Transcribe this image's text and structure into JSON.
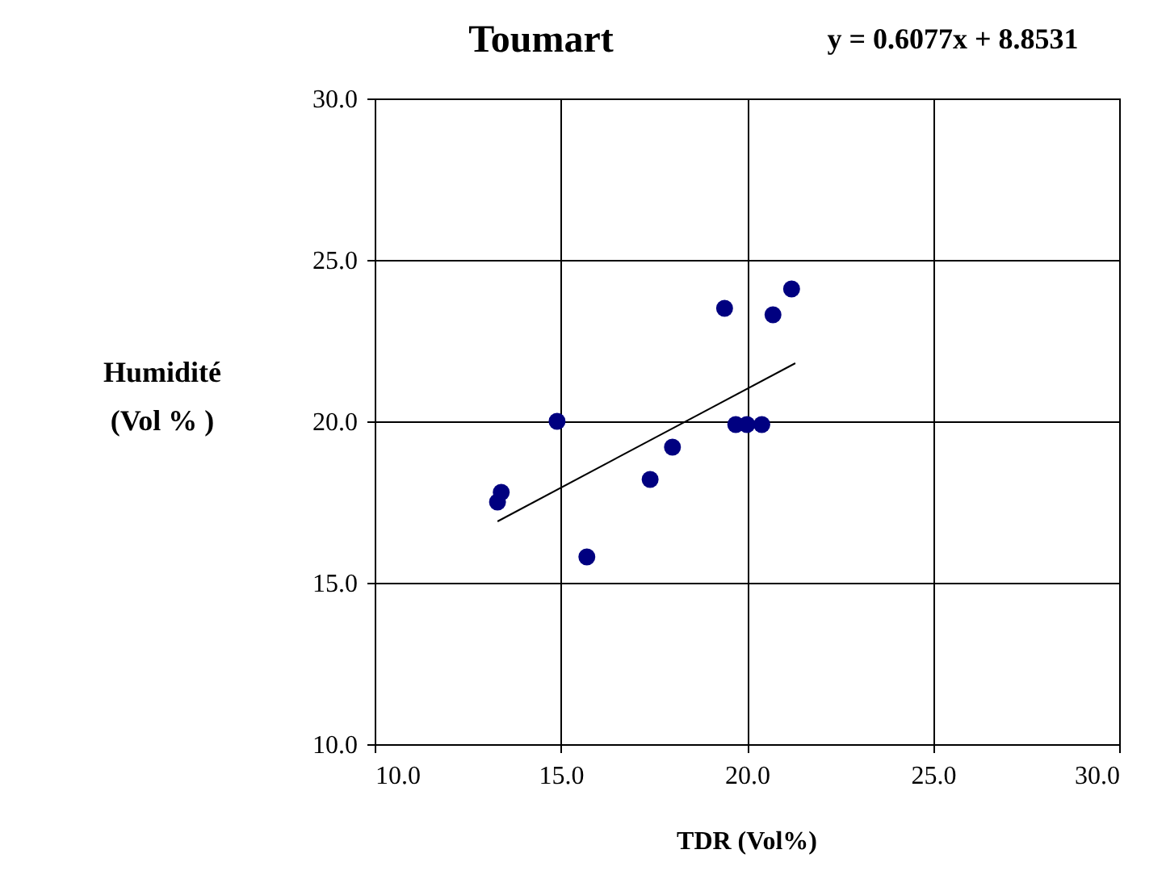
{
  "chart_data": {
    "type": "scatter",
    "title": "Toumart",
    "xlabel": "TDR (Vol%)",
    "ylabel": "Humidité\n(Vol % )",
    "annotations": [
      "y = 0.6077x + 8.8531"
    ],
    "series": [
      {
        "color": "#000080",
        "marker": "circle",
        "x": [
          13.4,
          13.3,
          14.9,
          15.7,
          17.4,
          18.0,
          19.4,
          19.7,
          20.0,
          20.4,
          20.7,
          21.2
        ],
        "values": [
          17.8,
          17.5,
          20.0,
          15.8,
          18.2,
          19.2,
          23.5,
          19.9,
          19.9,
          19.9,
          23.3,
          24.1
        ]
      },
      {
        "type": "line",
        "line_style": "solid",
        "color": "#000000",
        "x": [
          13.3,
          21.3
        ],
        "values": [
          16.9,
          21.8
        ]
      }
    ],
    "xlim": [
      10,
      30
    ],
    "ylim": [
      10,
      30
    ],
    "xticks": [
      {
        "value": 10,
        "label": "10.0"
      },
      {
        "value": 15,
        "label": "15.0"
      },
      {
        "value": 20,
        "label": "20.0"
      },
      {
        "value": 25,
        "label": "25.0"
      },
      {
        "value": 30,
        "label": "30.0"
      }
    ],
    "yticks": [
      {
        "value": 10,
        "label": "10.0"
      },
      {
        "value": 15,
        "label": "15.0"
      },
      {
        "value": 20,
        "label": "20.0"
      },
      {
        "value": 25,
        "label": "25.0"
      },
      {
        "value": 30,
        "label": "30.0"
      }
    ],
    "grid": true
  }
}
